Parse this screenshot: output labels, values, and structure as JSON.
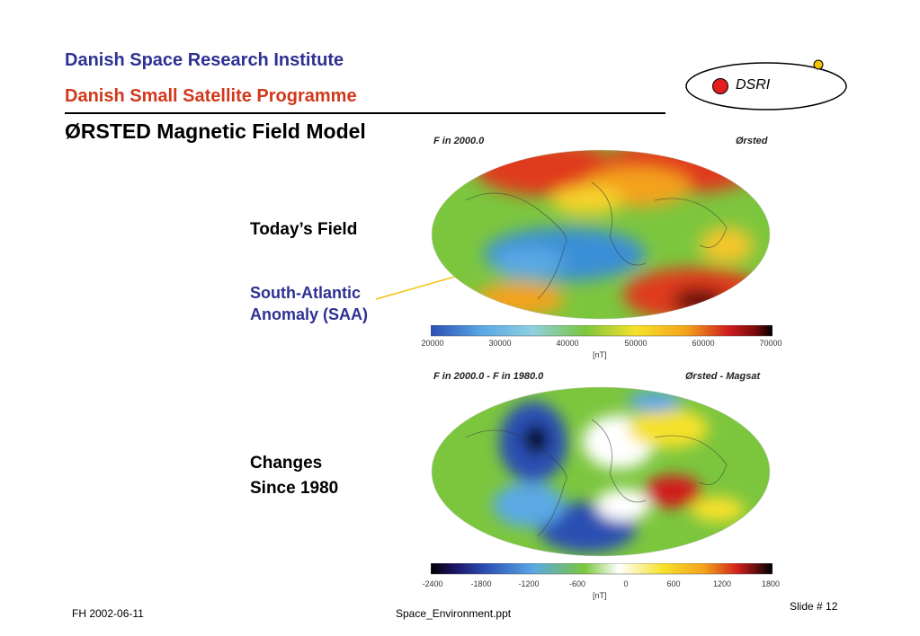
{
  "header": {
    "institute": "Danish Space Research Institute",
    "programme": "Danish Small Satellite Programme"
  },
  "logo": {
    "text": "DSRI",
    "dot_color": "#e21e1e",
    "orbit_dot_color": "#f5c400"
  },
  "slide_title": "ØRSTED Magnetic Field Model",
  "labels": {
    "todays_field": "Today’s Field",
    "saa_line1": "South-Atlantic",
    "saa_line2": "Anomaly (SAA)",
    "changes_line1": "Changes",
    "changes_line2": "Since 1980"
  },
  "map_top": {
    "title_left": "F in 2000.0",
    "title_right": "Ørsted",
    "scale_ticks": [
      "20000",
      "30000",
      "40000",
      "50000",
      "60000",
      "70000"
    ],
    "unit": "[nT]"
  },
  "map_bottom": {
    "title_left": "F in 2000.0 - F in 1980.0",
    "title_right": "Ørsted - Magsat",
    "scale_ticks": [
      "-2400",
      "-1800",
      "-1200",
      "-600",
      "0",
      "600",
      "1200",
      "1800"
    ],
    "unit": "[nT]"
  },
  "footer": {
    "author_date": "FH  2002-06-11",
    "filename": "Space_Environment.ppt",
    "slide_number": "Slide # 12"
  }
}
